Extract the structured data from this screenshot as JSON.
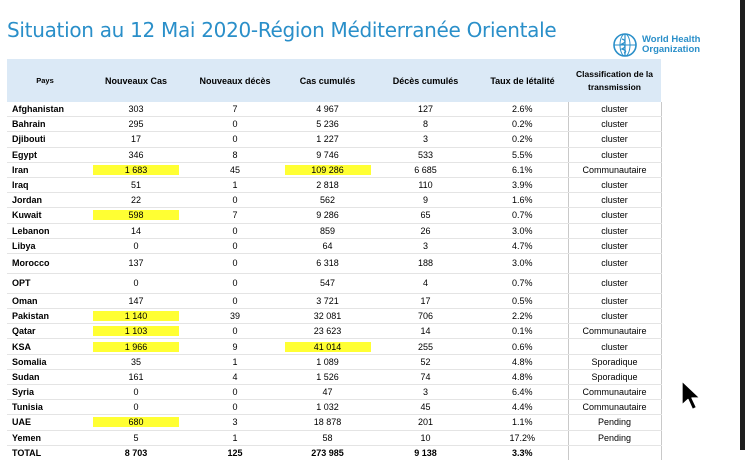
{
  "title": "Situation au 12 Mai 2020-Région Méditerranée Orientale",
  "logo": {
    "line1": "World Health",
    "line2": "Organization"
  },
  "headers": {
    "pays": "Pays",
    "nouveaux_cas": "Nouveaux Cas",
    "nouveaux_deces": "Nouveaux décès",
    "cas_cumules": "Cas cumulés",
    "deces_cumules": "Décès cumulés",
    "taux_letalite": "Taux de létalité",
    "classification_line1": "Classification de la",
    "classification_line2": "transmission"
  },
  "highlight_color": "#ffff33",
  "rows": [
    {
      "pays": "Afghanistan",
      "nouveaux_cas": "303",
      "nouveaux_deces": "7",
      "cas_cumules": "4 967",
      "deces_cumules": "127",
      "taux": "2.6%",
      "classification": "cluster"
    },
    {
      "pays": "Bahrain",
      "nouveaux_cas": "295",
      "nouveaux_deces": "0",
      "cas_cumules": "5 236",
      "deces_cumules": "8",
      "taux": "0.2%",
      "classification": "cluster"
    },
    {
      "pays": "Djibouti",
      "nouveaux_cas": "17",
      "nouveaux_deces": "0",
      "cas_cumules": "1 227",
      "deces_cumules": "3",
      "taux": "0.2%",
      "classification": "cluster"
    },
    {
      "pays": "Egypt",
      "nouveaux_cas": "346",
      "nouveaux_deces": "8",
      "cas_cumules": "9 746",
      "deces_cumules": "533",
      "taux": "5.5%",
      "classification": "cluster"
    },
    {
      "pays": "Iran",
      "nouveaux_cas": "1 683",
      "nouveaux_deces": "45",
      "cas_cumules": "109 286",
      "deces_cumules": "6 685",
      "taux": "6.1%",
      "classification": "Communautaire"
    },
    {
      "pays": "Iraq",
      "nouveaux_cas": "51",
      "nouveaux_deces": "1",
      "cas_cumules": "2 818",
      "deces_cumules": "110",
      "taux": "3.9%",
      "classification": "cluster"
    },
    {
      "pays": "Jordan",
      "nouveaux_cas": "22",
      "nouveaux_deces": "0",
      "cas_cumules": "562",
      "deces_cumules": "9",
      "taux": "1.6%",
      "classification": "cluster"
    },
    {
      "pays": "Kuwait",
      "nouveaux_cas": "598",
      "nouveaux_deces": "7",
      "cas_cumules": "9 286",
      "deces_cumules": "65",
      "taux": "0.7%",
      "classification": "cluster"
    },
    {
      "pays": "Lebanon",
      "nouveaux_cas": "14",
      "nouveaux_deces": "0",
      "cas_cumules": "859",
      "deces_cumules": "26",
      "taux": "3.0%",
      "classification": "cluster"
    },
    {
      "pays": "Libya",
      "nouveaux_cas": "0",
      "nouveaux_deces": "0",
      "cas_cumules": "64",
      "deces_cumules": "3",
      "taux": "4.7%",
      "classification": "cluster"
    },
    {
      "pays": "Morocco",
      "nouveaux_cas": "137",
      "nouveaux_deces": "0",
      "cas_cumules": "6 318",
      "deces_cumules": "188",
      "taux": "3.0%",
      "classification": "cluster"
    },
    {
      "pays": "OPT",
      "nouveaux_cas": "0",
      "nouveaux_deces": "0",
      "cas_cumules": "547",
      "deces_cumules": "4",
      "taux": "0.7%",
      "classification": "cluster"
    },
    {
      "pays": "Oman",
      "nouveaux_cas": "147",
      "nouveaux_deces": "0",
      "cas_cumules": "3 721",
      "deces_cumules": "17",
      "taux": "0.5%",
      "classification": "cluster"
    },
    {
      "pays": "Pakistan",
      "nouveaux_cas": "1 140",
      "nouveaux_deces": "39",
      "cas_cumules": "32 081",
      "deces_cumules": "706",
      "taux": "2.2%",
      "classification": "cluster"
    },
    {
      "pays": "Qatar",
      "nouveaux_cas": "1 103",
      "nouveaux_deces": "0",
      "cas_cumules": "23 623",
      "deces_cumules": "14",
      "taux": "0.1%",
      "classification": "Communautaire"
    },
    {
      "pays": "KSA",
      "nouveaux_cas": "1 966",
      "nouveaux_deces": "9",
      "cas_cumules": "41 014",
      "deces_cumules": "255",
      "taux": "0.6%",
      "classification": "cluster"
    },
    {
      "pays": "Somalia",
      "nouveaux_cas": "35",
      "nouveaux_deces": "1",
      "cas_cumules": "1 089",
      "deces_cumules": "52",
      "taux": "4.8%",
      "classification": "Sporadique"
    },
    {
      "pays": "Sudan",
      "nouveaux_cas": "161",
      "nouveaux_deces": "4",
      "cas_cumules": "1 526",
      "deces_cumules": "74",
      "taux": "4.8%",
      "classification": "Sporadique"
    },
    {
      "pays": "Syria",
      "nouveaux_cas": "0",
      "nouveaux_deces": "0",
      "cas_cumules": "47",
      "deces_cumules": "3",
      "taux": "6.4%",
      "classification": "Communautaire"
    },
    {
      "pays": "Tunisia",
      "nouveaux_cas": "0",
      "nouveaux_deces": "0",
      "cas_cumules": "1 032",
      "deces_cumules": "45",
      "taux": "4.4%",
      "classification": "Communautaire"
    },
    {
      "pays": "UAE",
      "nouveaux_cas": "680",
      "nouveaux_deces": "3",
      "cas_cumules": "18 878",
      "deces_cumules": "201",
      "taux": "1.1%",
      "classification": "Pending"
    },
    {
      "pays": "Yemen",
      "nouveaux_cas": "5",
      "nouveaux_deces": "1",
      "cas_cumules": "58",
      "deces_cumules": "10",
      "taux": "17.2%",
      "classification": "Pending"
    }
  ],
  "total": {
    "pays": "TOTAL",
    "nouveaux_cas": "8 703",
    "nouveaux_deces": "125",
    "cas_cumules": "273 985",
    "deces_cumules": "9 138",
    "taux": "3.3%",
    "classification": ""
  }
}
